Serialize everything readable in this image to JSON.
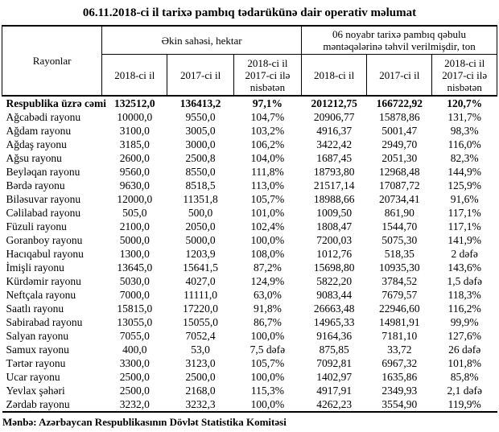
{
  "title": "06.11.2018-ci il tarixə pambıq tədarükünə dair operativ məlumat",
  "table": {
    "row_header": "Rayonlar",
    "group1_header": "Əkin sahəsi, hektar",
    "group2_header": "06 noyabr tarixə pambıq qəbulu məntəqələrinə təhvil verilmişdir, ton",
    "sub_headers": [
      "2018-ci il",
      "2017-ci il",
      "2018-ci il 2017-ci ilə nisbətən"
    ],
    "rows": [
      {
        "name": "Respublika üzrə cəmi",
        "bold": true,
        "values": [
          "132512,0",
          "136413,2",
          "97,1%",
          "201212,75",
          "166722,92",
          "120,7%"
        ]
      },
      {
        "name": "Ağcabədi rayonu",
        "bold": false,
        "values": [
          "10000,0",
          "9550,0",
          "104,7%",
          "20906,77",
          "15878,86",
          "131,7%"
        ]
      },
      {
        "name": "Ağdam rayonu",
        "bold": false,
        "values": [
          "3100,0",
          "3005,0",
          "103,2%",
          "4916,37",
          "5001,47",
          "98,3%"
        ]
      },
      {
        "name": "Ağdaş rayonu",
        "bold": false,
        "values": [
          "3185,0",
          "3000,0",
          "106,2%",
          "3422,42",
          "2949,70",
          "116,0%"
        ]
      },
      {
        "name": "Ağsu rayonu",
        "bold": false,
        "values": [
          "2600,0",
          "2500,8",
          "104,0%",
          "1687,45",
          "2051,30",
          "82,3%"
        ]
      },
      {
        "name": "Beyləqan rayonu",
        "bold": false,
        "values": [
          "9560,0",
          "8550,0",
          "111,8%",
          "18793,80",
          "12968,48",
          "144,9%"
        ]
      },
      {
        "name": "Bərdə rayonu",
        "bold": false,
        "values": [
          "9630,0",
          "8518,5",
          "113,0%",
          "21517,14",
          "17087,72",
          "125,9%"
        ]
      },
      {
        "name": "Biləsuvar rayonu",
        "bold": false,
        "values": [
          "12000,0",
          "11351,8",
          "105,7%",
          "18988,66",
          "20734,41",
          "91,6%"
        ]
      },
      {
        "name": "Cəlilabad rayonu",
        "bold": false,
        "values": [
          "505,0",
          "500,0",
          "101,0%",
          "1009,50",
          "861,90",
          "117,1%"
        ]
      },
      {
        "name": "Füzuli rayonu",
        "bold": false,
        "values": [
          "2100,0",
          "2050,0",
          "102,4%",
          "1808,47",
          "1544,70",
          "117,1%"
        ]
      },
      {
        "name": "Goranboy rayonu",
        "bold": false,
        "values": [
          "5000,0",
          "5000,0",
          "100,0%",
          "7200,03",
          "5075,30",
          "141,9%"
        ]
      },
      {
        "name": "Hacıqabul rayonu",
        "bold": false,
        "values": [
          "1300,0",
          "1203,9",
          "108,0%",
          "1012,76",
          "518,35",
          "2 dəfə"
        ]
      },
      {
        "name": "İmişli rayonu",
        "bold": false,
        "values": [
          "13645,0",
          "15641,5",
          "87,2%",
          "15698,80",
          "10935,30",
          "143,6%"
        ]
      },
      {
        "name": "Kürdəmir rayonu",
        "bold": false,
        "values": [
          "5030,0",
          "4027,0",
          "124,9%",
          "5822,20",
          "3784,52",
          "1,5 dəfə"
        ]
      },
      {
        "name": "Neftçala rayonu",
        "bold": false,
        "values": [
          "7000,0",
          "11111,0",
          "63,0%",
          "9083,44",
          "7679,57",
          "118,3%"
        ]
      },
      {
        "name": "Saatlı rayonu",
        "bold": false,
        "values": [
          "15815,0",
          "17220,0",
          "91,8%",
          "26663,48",
          "22946,60",
          "116,2%"
        ]
      },
      {
        "name": "Sabirabad rayonu",
        "bold": false,
        "values": [
          "13055,0",
          "15055,0",
          "86,7%",
          "14965,33",
          "14981,91",
          "99,9%"
        ]
      },
      {
        "name": "Salyan rayonu",
        "bold": false,
        "values": [
          "7055,0",
          "7052,4",
          "100,0%",
          "9164,36",
          "7181,10",
          "127,6%"
        ]
      },
      {
        "name": "Samux rayonu",
        "bold": false,
        "values": [
          "400,0",
          "53,0",
          "7,5 dəfə",
          "875,85",
          "33,72",
          "26 dəfə"
        ]
      },
      {
        "name": "Tərtər rayonu",
        "bold": false,
        "values": [
          "3300,0",
          "3123,0",
          "105,7%",
          "7092,81",
          "6967,32",
          "101,8%"
        ]
      },
      {
        "name": "Ucar rayonu",
        "bold": false,
        "values": [
          "2500,0",
          "2500,0",
          "100,0%",
          "1402,97",
          "1635,86",
          "85,8%"
        ]
      },
      {
        "name": "Yevlax şəhəri",
        "bold": false,
        "values": [
          "2500,0",
          "2168,0",
          "115,3%",
          "4917,91",
          "2349,93",
          "2,1 dəfə"
        ]
      },
      {
        "name": "Zərdab rayonu",
        "bold": false,
        "values": [
          "3232,0",
          "3232,3",
          "100,0%",
          "4262,23",
          "3554,90",
          "119,9%"
        ]
      }
    ]
  },
  "source": "Mənbə: Azərbaycan Respublikasının Dövlət Statistika Komitəsi"
}
